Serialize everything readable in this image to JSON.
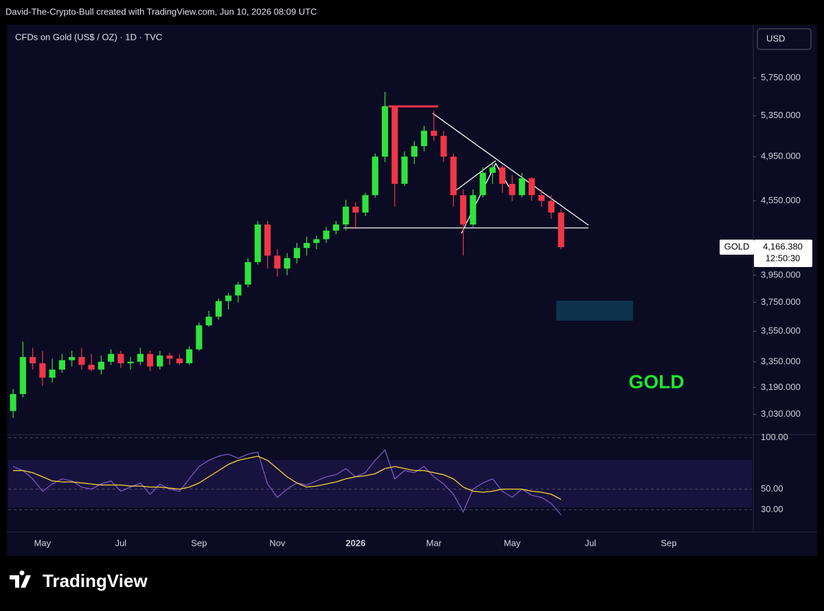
{
  "header": {
    "text": "David-The-Crypto-Bull created with TradingView.com, Jun 10, 2026 08:09 UTC"
  },
  "chart_data": {
    "type": "candlestick",
    "title": "CFDs on Gold (US$ / OZ) · 1D · TVC",
    "currency": "USD",
    "categories": [
      null,
      null,
      null,
      "May",
      null,
      null,
      null,
      null,
      null,
      null,
      null,
      "Jul",
      null,
      null,
      null,
      null,
      null,
      null,
      null,
      "Sep",
      null,
      null,
      null,
      null,
      null,
      null,
      null,
      "Nov",
      null,
      null,
      null,
      null,
      null,
      null,
      null,
      "2026",
      null,
      null,
      null,
      null,
      null,
      null,
      null,
      "Mar",
      null,
      null,
      null,
      null,
      null,
      null,
      null,
      "May",
      null,
      null,
      null,
      null,
      null,
      null,
      null,
      "Jul",
      null,
      null,
      null,
      null,
      null,
      null,
      null,
      "Sep",
      null,
      null,
      null,
      null,
      null,
      null,
      null,
      null
    ],
    "ohlc": [
      [
        3050,
        3180,
        3010,
        3150
      ],
      [
        3150,
        3480,
        3130,
        3380
      ],
      [
        3380,
        3440,
        3300,
        3340
      ],
      [
        3340,
        3420,
        3200,
        3250
      ],
      [
        3250,
        3370,
        3220,
        3300
      ],
      [
        3300,
        3400,
        3280,
        3360
      ],
      [
        3360,
        3420,
        3320,
        3380
      ],
      [
        3380,
        3440,
        3300,
        3330
      ],
      [
        3330,
        3400,
        3290,
        3300
      ],
      [
        3300,
        3390,
        3270,
        3350
      ],
      [
        3350,
        3430,
        3330,
        3400
      ],
      [
        3400,
        3420,
        3310,
        3340
      ],
      [
        3340,
        3380,
        3300,
        3350
      ],
      [
        3350,
        3440,
        3330,
        3400
      ],
      [
        3400,
        3420,
        3290,
        3320
      ],
      [
        3320,
        3420,
        3300,
        3390
      ],
      [
        3390,
        3410,
        3330,
        3370
      ],
      [
        3370,
        3400,
        3330,
        3340
      ],
      [
        3340,
        3450,
        3330,
        3430
      ],
      [
        3430,
        3610,
        3420,
        3590
      ],
      [
        3590,
        3690,
        3580,
        3650
      ],
      [
        3650,
        3780,
        3630,
        3760
      ],
      [
        3760,
        3820,
        3700,
        3800
      ],
      [
        3800,
        3900,
        3750,
        3880
      ],
      [
        3880,
        4080,
        3860,
        4050
      ],
      [
        4050,
        4380,
        4030,
        4350
      ],
      [
        4350,
        4380,
        4000,
        4100
      ],
      [
        4100,
        4150,
        3940,
        4000
      ],
      [
        4000,
        4120,
        3950,
        4080
      ],
      [
        4080,
        4200,
        4040,
        4160
      ],
      [
        4160,
        4250,
        4100,
        4200
      ],
      [
        4200,
        4260,
        4150,
        4230
      ],
      [
        4230,
        4330,
        4200,
        4300
      ],
      [
        4300,
        4380,
        4270,
        4350
      ],
      [
        4350,
        4560,
        4300,
        4500
      ],
      [
        4500,
        4540,
        4310,
        4450
      ],
      [
        4450,
        4620,
        4420,
        4600
      ],
      [
        4600,
        4980,
        4580,
        4950
      ],
      [
        4950,
        5600,
        4900,
        5450
      ],
      [
        5450,
        5450,
        4500,
        4700
      ],
      [
        4700,
        5000,
        4680,
        4950
      ],
      [
        4950,
        5100,
        4880,
        5050
      ],
      [
        5050,
        5250,
        5000,
        5200
      ],
      [
        5200,
        5400,
        5100,
        5150
      ],
      [
        5150,
        5200,
        4900,
        4950
      ],
      [
        4950,
        4980,
        4500,
        4600
      ],
      [
        4600,
        4650,
        4100,
        4350
      ],
      [
        4350,
        4650,
        4330,
        4600
      ],
      [
        4600,
        4850,
        4580,
        4800
      ],
      [
        4800,
        4900,
        4700,
        4850
      ],
      [
        4850,
        4870,
        4620,
        4700
      ],
      [
        4700,
        4780,
        4550,
        4600
      ],
      [
        4600,
        4800,
        4580,
        4750
      ],
      [
        4750,
        4760,
        4550,
        4600
      ],
      [
        4600,
        4650,
        4500,
        4550
      ],
      [
        4550,
        4600,
        4400,
        4450
      ],
      [
        4450,
        4480,
        4150,
        4166.38
      ],
      null,
      null,
      null,
      null,
      null,
      null,
      null,
      null,
      null,
      null,
      null,
      null,
      null,
      null,
      null,
      null,
      null,
      null,
      null
    ],
    "up_color": "#2fe33c",
    "down_color": "#f23645",
    "log_scale": true,
    "ylim": [
      2920,
      6330
    ],
    "yticks": [
      {
        "value": 5750,
        "label": "5,750.000"
      },
      {
        "value": 5350,
        "label": "5,350.000"
      },
      {
        "value": 4950,
        "label": "4,950.000"
      },
      {
        "value": 4550,
        "label": "4,550.000"
      },
      {
        "value": 3950,
        "label": "3,950.000"
      },
      {
        "value": 3750,
        "label": "3,750.000"
      },
      {
        "value": 3550,
        "label": "3,550.000"
      },
      {
        "value": 3350,
        "label": "3,350.000"
      },
      {
        "value": 3190,
        "label": "3,190.000"
      },
      {
        "value": 3030,
        "label": "3,030.000"
      }
    ],
    "last_price": {
      "symbol": "GOLD",
      "value": 4166.38,
      "label": "4,166.380",
      "countdown": "12:50:30"
    },
    "annotation": "GOLD",
    "indicator": {
      "type": "line",
      "ylim": [
        15,
        103
      ],
      "yticks": [
        {
          "value": 100,
          "label": "100.00"
        },
        {
          "value": 50,
          "label": "50.00"
        },
        {
          "value": 30,
          "label": "30.00"
        }
      ],
      "series": [
        {
          "color": "#7e57c2",
          "values": [
            72,
            68,
            60,
            48,
            55,
            60,
            58,
            52,
            50,
            55,
            58,
            48,
            52,
            56,
            45,
            55,
            50,
            48,
            60,
            72,
            78,
            82,
            84,
            80,
            84,
            86,
            55,
            42,
            50,
            56,
            54,
            58,
            62,
            64,
            70,
            62,
            66,
            78,
            88,
            60,
            68,
            66,
            72,
            62,
            55,
            45,
            28,
            50,
            56,
            60,
            48,
            42,
            50,
            44,
            42,
            36,
            25,
            null,
            null,
            null,
            null,
            null,
            null,
            null,
            null,
            null,
            null,
            null,
            null,
            null,
            null,
            null,
            null,
            null,
            null,
            null
          ]
        },
        {
          "color": "#fdd835",
          "values": [
            68,
            68,
            66,
            62,
            58,
            57,
            57,
            56,
            55,
            54,
            54,
            54,
            53,
            53,
            52,
            52,
            51,
            50,
            52,
            56,
            62,
            68,
            74,
            78,
            80,
            82,
            78,
            70,
            62,
            56,
            52,
            53,
            55,
            57,
            60,
            62,
            63,
            65,
            70,
            72,
            70,
            68,
            68,
            66,
            64,
            60,
            52,
            48,
            47,
            48,
            50,
            50,
            50,
            48,
            47,
            45,
            40,
            null,
            null,
            null,
            null,
            null,
            null,
            null,
            null,
            null,
            null,
            null,
            null,
            null,
            null,
            null,
            null,
            null,
            null,
            null
          ]
        }
      ]
    }
  },
  "footer": {
    "brand": "TradingView"
  }
}
